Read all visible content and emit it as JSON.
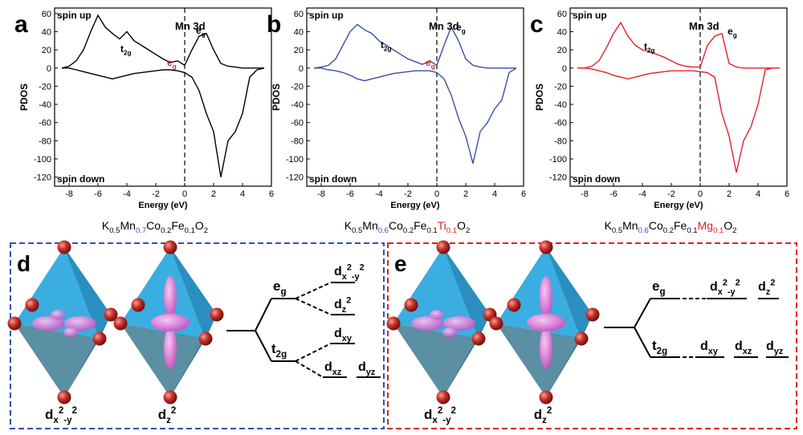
{
  "chart_data": [
    {
      "panel": "a",
      "type": "line",
      "xlabel": "Energy (eV)",
      "ylabel": "PDOS",
      "orbital": "Mn 3d",
      "t2g": [
        {
          "t": "t"
        },
        {
          "sub": "2g"
        }
      ],
      "eg": [
        {
          "t": "e"
        },
        {
          "sub": "g"
        }
      ],
      "eg_red": [
        {
          "t": "e",
          "color": "#e02020"
        },
        {
          "sub": "g",
          "color": "#e02020"
        }
      ],
      "fermi_level": 0,
      "xlim": [
        -9,
        6
      ],
      "ylim": [
        -130,
        66
      ],
      "xticks": [
        -8,
        -6,
        -4,
        -2,
        0,
        2,
        4,
        6
      ],
      "yticks": [
        -120,
        -100,
        -80,
        -60,
        -40,
        -20,
        0,
        20,
        40,
        60
      ],
      "x": [
        -8.5,
        -8,
        -7.5,
        -7,
        -6.5,
        -6,
        -5.5,
        -5,
        -4.5,
        -4,
        -3.5,
        -3,
        -2.5,
        -2,
        -1.5,
        -1,
        -0.5,
        0,
        0.5,
        1,
        1.5,
        2,
        2.5,
        3,
        3.5,
        4,
        4.5,
        5,
        5.5
      ],
      "series": [
        {
          "name": "spin up",
          "color": "#000000",
          "values": [
            0,
            2,
            8,
            20,
            40,
            58,
            45,
            38,
            32,
            40,
            30,
            25,
            20,
            15,
            10,
            6,
            8,
            3,
            20,
            35,
            38,
            20,
            5,
            2,
            1,
            0,
            0,
            0,
            0
          ]
        },
        {
          "name": "spin down",
          "color": "#000000",
          "values": [
            0,
            0,
            -2,
            -4,
            -6,
            -8,
            -10,
            -12,
            -10,
            -8,
            -6,
            -5,
            -4,
            -3,
            -2,
            -2,
            -3,
            -5,
            -10,
            -25,
            -50,
            -70,
            -120,
            -80,
            -70,
            -50,
            -10,
            -2,
            0
          ]
        }
      ],
      "formula": [
        {
          "t": "K"
        },
        {
          "sub": "0.5"
        },
        {
          "t": "Mn"
        },
        {
          "sub": "0.7",
          "color": "#3050b0"
        },
        {
          "t": "Co"
        },
        {
          "sub": "0.2"
        },
        {
          "t": "Fe"
        },
        {
          "sub": "0.1"
        },
        {
          "t": "O"
        },
        {
          "sub": "2"
        }
      ]
    },
    {
      "panel": "b",
      "type": "line",
      "xlabel": "Energy (eV)",
      "ylabel": "PDOS",
      "orbital": "Mn 3d",
      "t2g": [
        {
          "t": "t"
        },
        {
          "sub": "2g"
        }
      ],
      "eg": [
        {
          "t": "e"
        },
        {
          "sub": "g"
        }
      ],
      "eg_red": [
        {
          "t": "e",
          "color": "#e02020"
        },
        {
          "sub": "g",
          "color": "#e02020"
        }
      ],
      "fermi_level": 0,
      "xlim": [
        -9,
        6
      ],
      "ylim": [
        -130,
        66
      ],
      "xticks": [
        -8,
        -6,
        -4,
        -2,
        0,
        2,
        4,
        6
      ],
      "yticks": [
        -120,
        -100,
        -80,
        -60,
        -40,
        -20,
        0,
        20,
        40,
        60
      ],
      "x": [
        -8.5,
        -8,
        -7.5,
        -7,
        -6.5,
        -6,
        -5.5,
        -5,
        -4.5,
        -4,
        -3.5,
        -3,
        -2.5,
        -2,
        -1.5,
        -1,
        -0.5,
        0,
        0.5,
        1,
        1.5,
        2,
        2.5,
        3,
        3.5,
        4,
        4.5,
        5,
        5.5
      ],
      "series": [
        {
          "name": "spin up",
          "color": "#3a4fa8",
          "values": [
            0,
            1,
            3,
            10,
            25,
            40,
            48,
            42,
            38,
            30,
            25,
            20,
            15,
            10,
            7,
            4,
            8,
            3,
            25,
            45,
            30,
            10,
            3,
            1,
            0,
            0,
            0,
            0,
            0
          ]
        },
        {
          "name": "spin down",
          "color": "#3a4fa8",
          "values": [
            0,
            0,
            -2,
            -3,
            -5,
            -8,
            -12,
            -14,
            -12,
            -10,
            -8,
            -6,
            -5,
            -4,
            -3,
            -3,
            -3,
            -5,
            -12,
            -30,
            -55,
            -75,
            -105,
            -70,
            -60,
            -45,
            -35,
            -5,
            0
          ]
        }
      ],
      "formula": [
        {
          "t": "K"
        },
        {
          "sub": "0.5"
        },
        {
          "t": "Mn"
        },
        {
          "sub": "0.6",
          "color": "#3050b0"
        },
        {
          "t": "Co"
        },
        {
          "sub": "0.2"
        },
        {
          "t": "Fe"
        },
        {
          "sub": "0.1"
        },
        {
          "t": "Ti",
          "color": "#e02020"
        },
        {
          "sub": "0.1",
          "color": "#e02020"
        },
        {
          "t": "O"
        },
        {
          "sub": "2"
        }
      ]
    },
    {
      "panel": "c",
      "type": "line",
      "xlabel": "Energy (eV)",
      "ylabel": "PDOS",
      "orbital": "Mn 3d",
      "t2g": [
        {
          "t": "t"
        },
        {
          "sub": "2g"
        }
      ],
      "eg": [
        {
          "t": "e"
        },
        {
          "sub": "g"
        }
      ],
      "fermi_level": 0,
      "xlim": [
        -9,
        6
      ],
      "ylim": [
        -130,
        66
      ],
      "xticks": [
        -8,
        -6,
        -4,
        -2,
        0,
        2,
        4,
        6
      ],
      "yticks": [
        -120,
        -100,
        -80,
        -60,
        -40,
        -20,
        0,
        20,
        40,
        60
      ],
      "x": [
        -8.5,
        -8,
        -7.5,
        -7,
        -6.5,
        -6,
        -5.5,
        -5,
        -4.5,
        -4,
        -3.5,
        -3,
        -2.5,
        -2,
        -1.5,
        -1,
        -0.5,
        0,
        0.5,
        1,
        1.5,
        2,
        2.5,
        3,
        3.5,
        4,
        4.5,
        5,
        5.5
      ],
      "series": [
        {
          "name": "spin up",
          "color": "#e8202a",
          "values": [
            0,
            0,
            2,
            8,
            22,
            38,
            50,
            35,
            25,
            20,
            18,
            15,
            12,
            8,
            4,
            2,
            1,
            1,
            25,
            35,
            38,
            5,
            1,
            0,
            0,
            0,
            0,
            0,
            0
          ]
        },
        {
          "name": "spin down",
          "color": "#e8202a",
          "values": [
            0,
            0,
            -1,
            -3,
            -5,
            -8,
            -10,
            -12,
            -10,
            -8,
            -6,
            -5,
            -4,
            -3,
            -3,
            -3,
            -3,
            -4,
            -5,
            -10,
            -50,
            -75,
            -115,
            -80,
            -65,
            -40,
            -2,
            0,
            0
          ]
        }
      ],
      "formula": [
        {
          "t": "K"
        },
        {
          "sub": "0.5"
        },
        {
          "t": "Mn"
        },
        {
          "sub": "0.6",
          "color": "#3050b0"
        },
        {
          "t": "Co"
        },
        {
          "sub": "0.2"
        },
        {
          "t": "Fe"
        },
        {
          "sub": "0.1"
        },
        {
          "t": "Mg",
          "color": "#e02020"
        },
        {
          "sub": "0.1",
          "color": "#e02020"
        },
        {
          "t": "O"
        },
        {
          "sub": "2"
        }
      ]
    }
  ],
  "diagrams": [
    {
      "panel": "d",
      "border": "#3050b0",
      "orbitals": [
        [
          {
            "t": "d"
          },
          {
            "sub": "x"
          },
          {
            "sup": "2"
          },
          {
            "sub": "-y"
          },
          {
            "sup": "2"
          }
        ],
        [
          {
            "t": "d"
          },
          {
            "sub": "z"
          },
          {
            "sup": "2"
          }
        ]
      ],
      "groups": [
        [
          {
            "t": "e"
          },
          {
            "sub": "g"
          }
        ],
        [
          {
            "t": "t"
          },
          {
            "sub": "2g"
          }
        ]
      ],
      "levels": [
        [
          {
            "t": "d"
          },
          {
            "sub": "x"
          },
          {
            "sup": "2"
          },
          {
            "sub": "-y"
          },
          {
            "sup": "2"
          }
        ],
        [
          {
            "t": "d"
          },
          {
            "sub": "z"
          },
          {
            "sup": "2"
          }
        ],
        [
          {
            "t": "d"
          },
          {
            "sub": "xy"
          }
        ],
        [
          {
            "t": "d"
          },
          {
            "sub": "xz"
          }
        ],
        [
          {
            "t": "d"
          },
          {
            "sub": "yz"
          }
        ]
      ]
    },
    {
      "panel": "e",
      "border": "#e02020",
      "orbitals": [
        [
          {
            "t": "d"
          },
          {
            "sub": "x"
          },
          {
            "sup": "2"
          },
          {
            "sub": "-y"
          },
          {
            "sup": "2"
          }
        ],
        [
          {
            "t": "d"
          },
          {
            "sub": "z"
          },
          {
            "sup": "2"
          }
        ]
      ],
      "groups": [
        [
          {
            "t": "e"
          },
          {
            "sub": "g"
          }
        ],
        [
          {
            "t": "t"
          },
          {
            "sub": "2g"
          }
        ]
      ],
      "levels": [
        [
          {
            "t": "d"
          },
          {
            "sub": "x"
          },
          {
            "sup": "2"
          },
          {
            "sub": "-y"
          },
          {
            "sup": "2"
          }
        ],
        [
          {
            "t": "d"
          },
          {
            "sub": "z"
          },
          {
            "sup": "2"
          }
        ],
        [
          {
            "t": "d"
          },
          {
            "sub": "xy"
          }
        ],
        [
          {
            "t": "d"
          },
          {
            "sub": "xz"
          }
        ],
        [
          {
            "t": "d"
          },
          {
            "sub": "yz"
          }
        ]
      ]
    }
  ]
}
